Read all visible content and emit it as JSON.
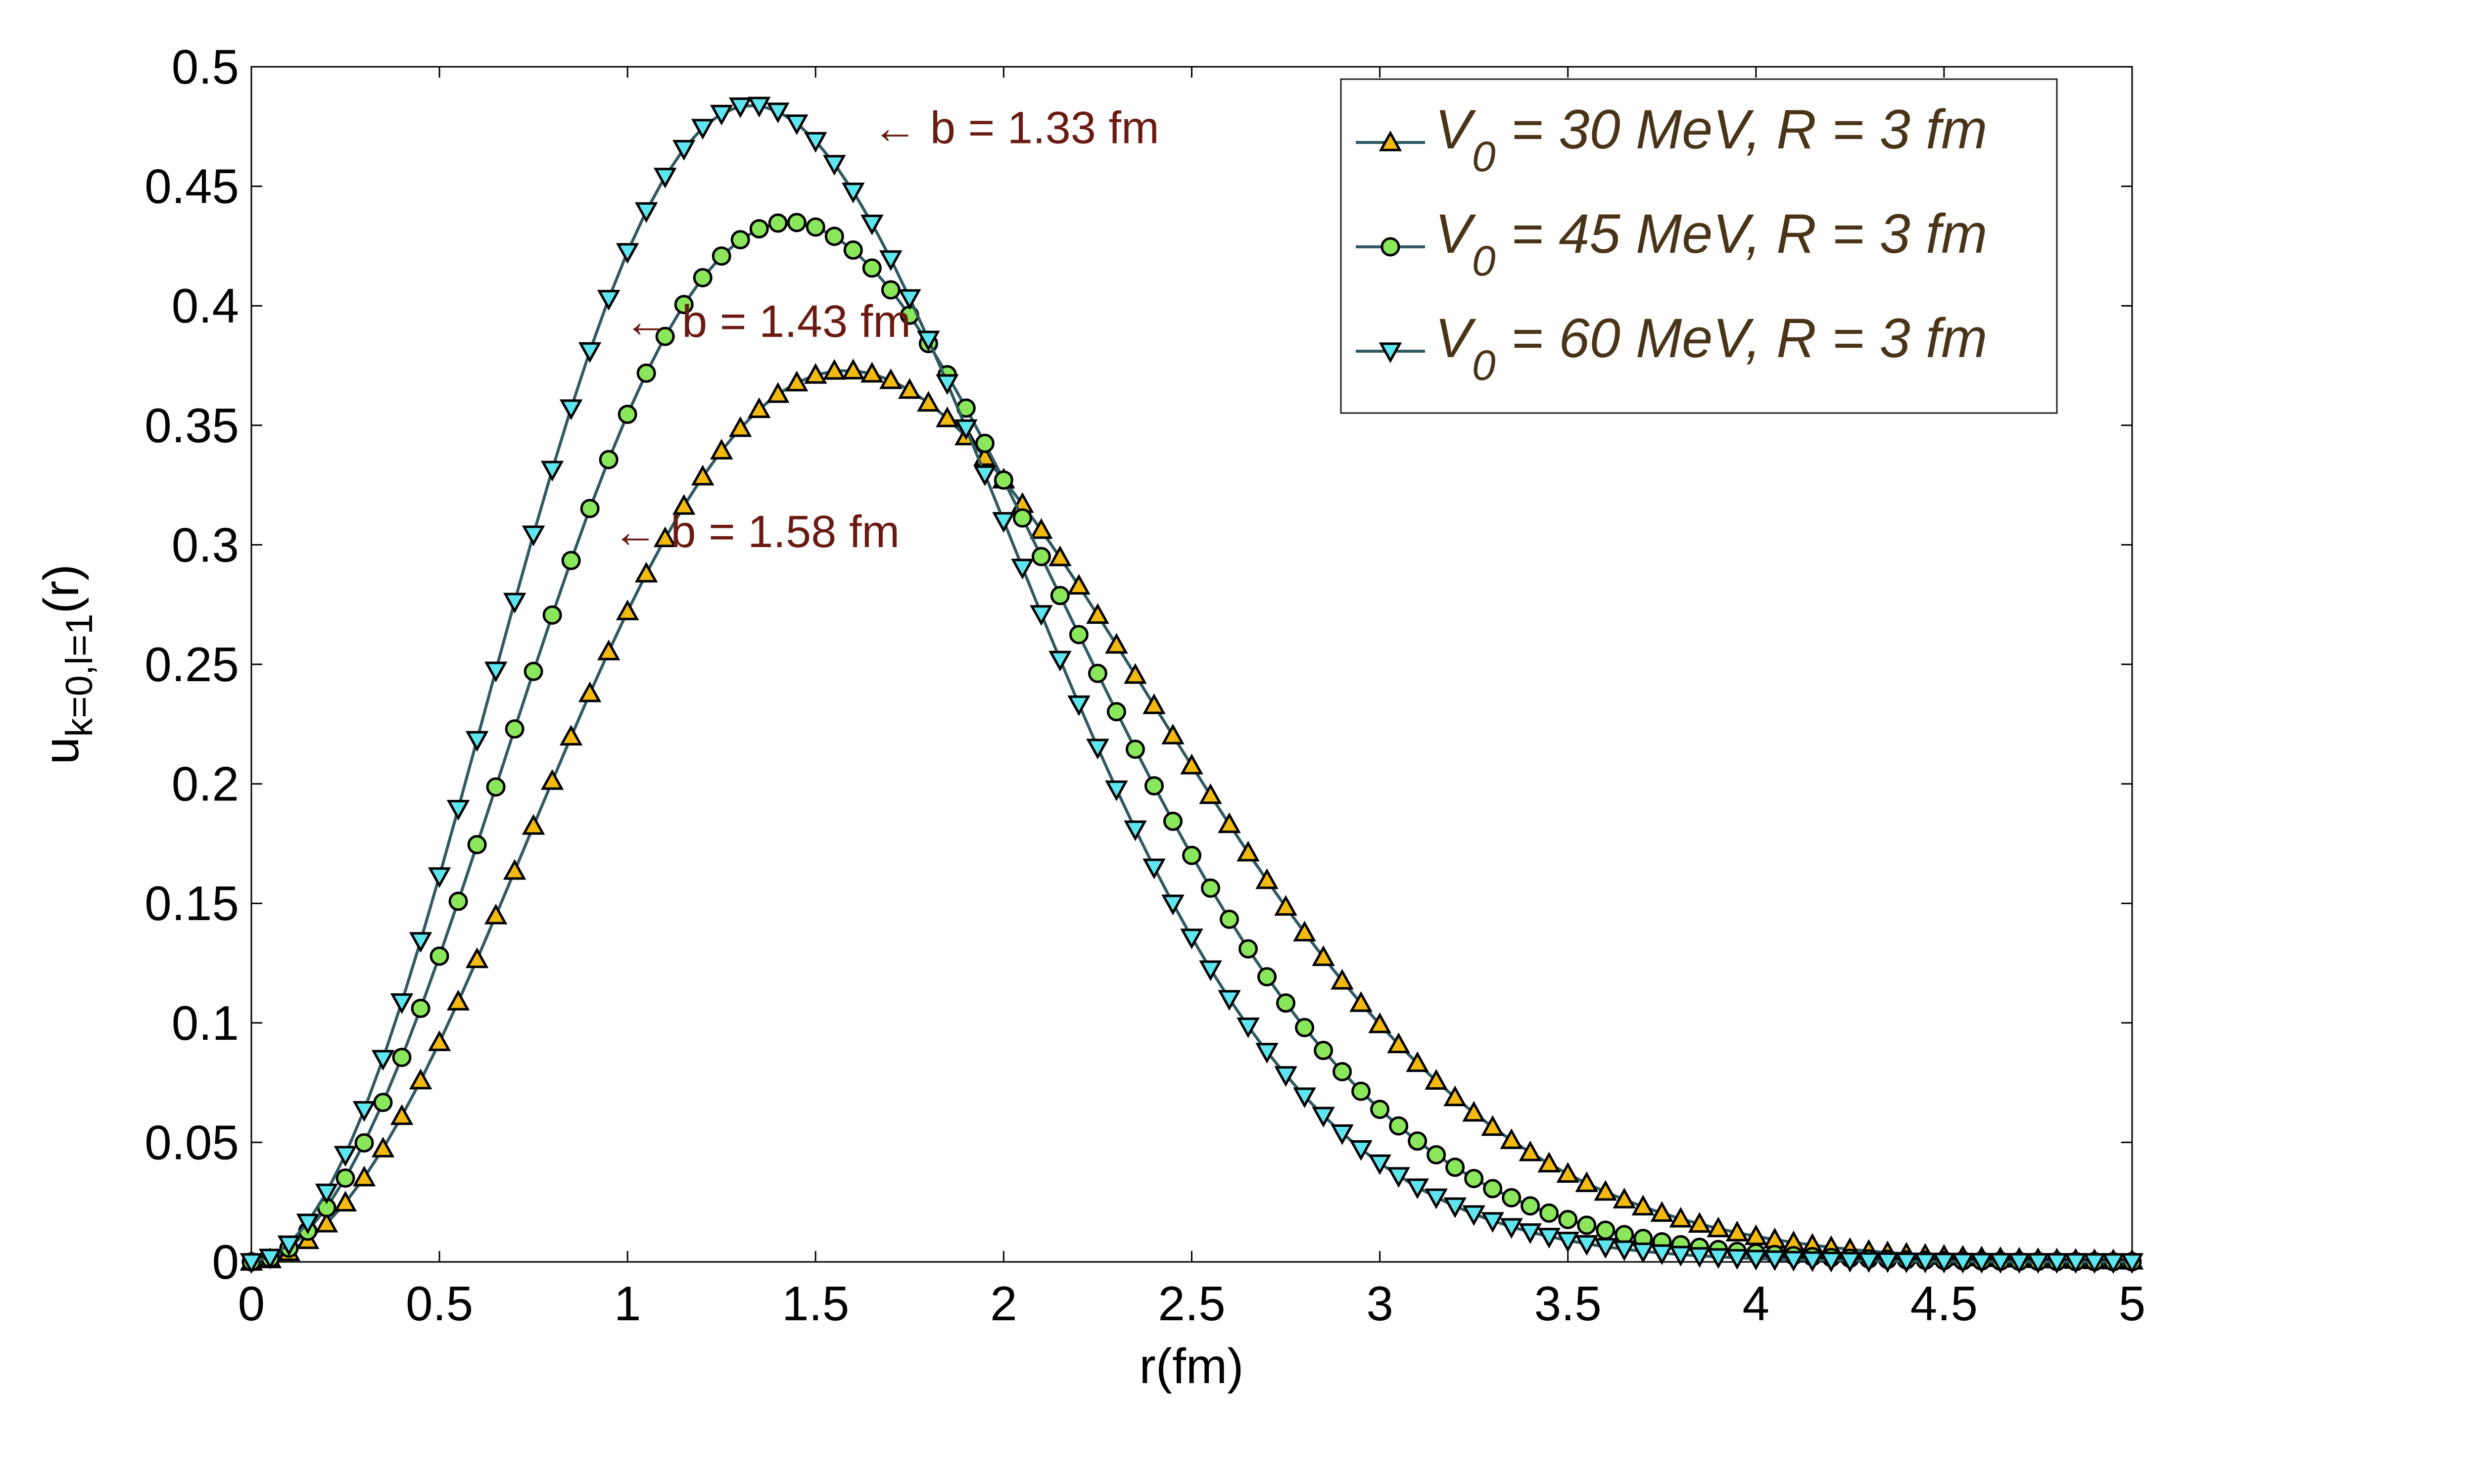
{
  "chart_data": {
    "type": "line",
    "title": "",
    "xlabel": "r(fm)",
    "ylabel": {
      "main": "u",
      "subscript": "k=0,l=1",
      "suffix": "(r)"
    },
    "xlim": [
      0,
      5
    ],
    "ylim": [
      0,
      0.5
    ],
    "x_ticks": [
      "0",
      "0.5",
      "1",
      "1.5",
      "2",
      "2.5",
      "3",
      "3.5",
      "4",
      "4.5",
      "5"
    ],
    "y_ticks": [
      "0",
      "0.05",
      "0.1",
      "0.15",
      "0.2",
      "0.25",
      "0.3",
      "0.35",
      "0.4",
      "0.45",
      "0.5"
    ],
    "grid": false,
    "legend_position": "top-right",
    "series": [
      {
        "name_main": "V",
        "name_sub": "0",
        "name_rest": " = 30 MeV, R = 3 fm",
        "b": 1.58,
        "peak": 0.373,
        "marker": "triangle-up",
        "marker_color": "#f2b90e"
      },
      {
        "name_main": "V",
        "name_sub": "0",
        "name_rest": " = 45 MeV, R = 3 fm",
        "b": 1.43,
        "peak": 0.435,
        "marker": "circle",
        "marker_color": "#8ae65a"
      },
      {
        "name_main": "V",
        "name_sub": "0",
        "name_rest": " = 60 MeV, R = 3 fm",
        "b": 1.33,
        "peak": 0.484,
        "marker": "triangle-down",
        "marker_color": "#5ee6f0"
      }
    ],
    "x_step": 0.05,
    "line_color": "#2f5a62",
    "annotations": [
      {
        "text": "← b = 1.33 fm",
        "x": 1.65,
        "y": 0.468
      },
      {
        "text": "← b = 1.43 fm",
        "x": 0.99,
        "y": 0.387
      },
      {
        "text": "← b = 1.58 fm",
        "x": 0.96,
        "y": 0.299
      }
    ]
  }
}
